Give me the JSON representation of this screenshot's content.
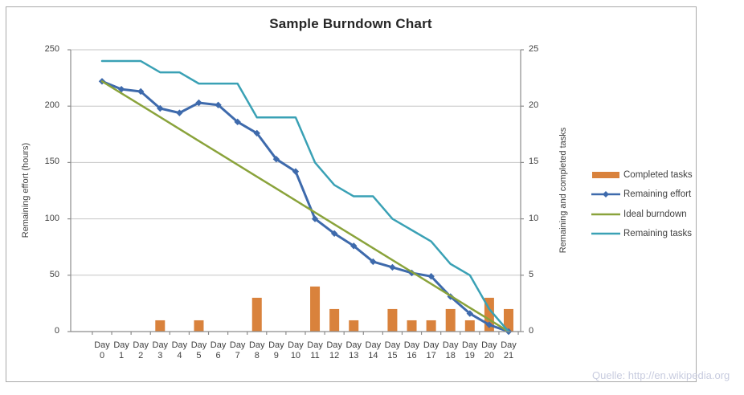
{
  "title": "Sample Burndown Chart",
  "watermark": "Quelle: http://en.wikipedia.org",
  "colors": {
    "completed_tasks": "#D9823C",
    "remaining_effort": "#3E6AAC",
    "ideal_burndown": "#8AA33B",
    "remaining_tasks": "#3AA1B5",
    "gridline": "#C6C6C6",
    "axis_line": "#8C8C8C",
    "tick_text": "#3F3F3F",
    "watermark_text": "#C8CCDF"
  },
  "axes": {
    "left": {
      "title": "Remaining effort (hours)",
      "ticks": [
        "0",
        "50",
        "100",
        "150",
        "200",
        "250"
      ]
    },
    "right": {
      "title": "Remaining and completed tasks",
      "ticks": [
        "0",
        "5",
        "10",
        "15",
        "20",
        "25"
      ]
    },
    "x": {
      "word": "Day",
      "numbers": [
        "0",
        "1",
        "2",
        "3",
        "4",
        "5",
        "6",
        "7",
        "8",
        "9",
        "10",
        "11",
        "12",
        "13",
        "14",
        "15",
        "16",
        "17",
        "18",
        "19",
        "20",
        "21"
      ]
    }
  },
  "chart_data": {
    "type": "combo",
    "title": "Sample Burndown Chart",
    "categories": [
      "Day 0",
      "Day 1",
      "Day 2",
      "Day 3",
      "Day 4",
      "Day 5",
      "Day 6",
      "Day 7",
      "Day 8",
      "Day 9",
      "Day 10",
      "Day 11",
      "Day 12",
      "Day 13",
      "Day 14",
      "Day 15",
      "Day 16",
      "Day 17",
      "Day 18",
      "Day 19",
      "Day 20",
      "Day 21"
    ],
    "left_axis": {
      "label": "Remaining effort (hours)",
      "range": [
        0,
        250
      ],
      "tick_step": 50,
      "grid": true
    },
    "right_axis": {
      "label": "Remaining and completed tasks",
      "range": [
        0,
        25
      ],
      "tick_step": 5
    },
    "legend_position": "right",
    "series": [
      {
        "name": "Completed tasks",
        "type": "bar",
        "axis": "right",
        "color": "#D9823C",
        "values": [
          0,
          0,
          0,
          1,
          0,
          1,
          0,
          0,
          3,
          0,
          0,
          4,
          2,
          1,
          0,
          2,
          1,
          1,
          2,
          1,
          3,
          2
        ]
      },
      {
        "name": "Remaining effort",
        "type": "line",
        "marker": "diamond",
        "axis": "left",
        "color": "#3E6AAC",
        "values": [
          222,
          215,
          213,
          198,
          194,
          203,
          201,
          186,
          176,
          153,
          142,
          100,
          87,
          76,
          62,
          57,
          52,
          49,
          31,
          16,
          6,
          0
        ]
      },
      {
        "name": "Ideal burndown",
        "type": "line",
        "axis": "left",
        "color": "#8AA33B",
        "values": [
          222,
          211.4,
          200.9,
          190.3,
          179.7,
          169.1,
          158.6,
          148,
          137.4,
          126.9,
          116.3,
          105.7,
          95.1,
          84.6,
          74,
          63.4,
          52.9,
          42.3,
          31.7,
          21.1,
          10.6,
          0
        ]
      },
      {
        "name": "Remaining tasks",
        "type": "line",
        "axis": "right",
        "color": "#3AA1B5",
        "values": [
          24,
          24,
          24,
          23,
          23,
          22,
          22,
          22,
          19,
          19,
          19,
          15,
          13,
          12,
          12,
          10,
          9,
          8,
          6,
          5,
          2,
          0
        ]
      }
    ]
  }
}
